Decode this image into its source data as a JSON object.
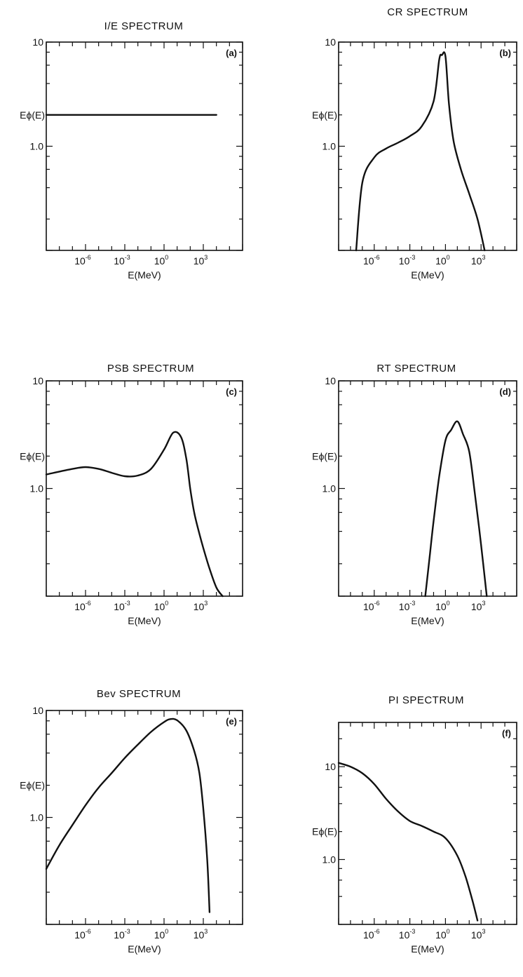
{
  "chart_data": [
    {
      "type": "line",
      "title": "I/E SPECTRUM",
      "panel_label": "(a)",
      "xlabel": "E(MeV)",
      "ylabel": "Eϕ(E)",
      "x_scale": "log",
      "y_scale": "log",
      "xlim": [
        1e-09,
        1000000.0
      ],
      "ylim": [
        0.1,
        10
      ],
      "x_ticks": [
        {
          "base": "10",
          "exp": "-6"
        },
        {
          "base": "10",
          "exp": "-3"
        },
        {
          "base": "10",
          "exp": "0"
        },
        {
          "base": "10",
          "exp": "3"
        }
      ],
      "x_tick_values": [
        1e-06,
        0.001,
        1,
        1000
      ],
      "y_ticks": [
        "1.0",
        "10"
      ],
      "y_tick_values": [
        1,
        10
      ],
      "series": [
        {
          "x": [
            1e-09,
            10000.0
          ],
          "y": [
            2.0,
            2.0
          ]
        }
      ]
    },
    {
      "type": "line",
      "title": "CR SPECTRUM",
      "panel_label": "(b)",
      "xlabel": "E(MeV)",
      "ylabel": "Eϕ(E)",
      "x_scale": "log",
      "y_scale": "log",
      "xlim": [
        1e-09,
        1000000.0
      ],
      "ylim": [
        0.1,
        10
      ],
      "x_ticks": [
        {
          "base": "10",
          "exp": "-6"
        },
        {
          "base": "10",
          "exp": "-3"
        },
        {
          "base": "10",
          "exp": "0"
        },
        {
          "base": "10",
          "exp": "3"
        }
      ],
      "x_tick_values": [
        1e-06,
        0.001,
        1,
        1000
      ],
      "y_ticks": [
        "1.0",
        "10"
      ],
      "y_tick_values": [
        1,
        10
      ],
      "series": [
        {
          "x": [
            3e-08,
            1e-07,
            1e-06,
            1e-05,
            0.0001,
            0.001,
            0.01,
            0.1,
            0.3,
            0.5,
            1.0,
            2,
            5,
            20,
            100,
            500,
            2000
          ],
          "y": [
            0.1,
            0.45,
            0.78,
            0.95,
            1.08,
            1.25,
            1.55,
            2.7,
            6.8,
            7.5,
            7.3,
            2.5,
            1.1,
            0.6,
            0.35,
            0.2,
            0.1
          ]
        }
      ]
    },
    {
      "type": "line",
      "title": "PSB SPECTRUM",
      "panel_label": "(c)",
      "xlabel": "E(MeV)",
      "ylabel": "Eϕ(E)",
      "x_scale": "log",
      "y_scale": "log",
      "xlim": [
        1e-09,
        1000000.0
      ],
      "ylim": [
        0.1,
        10
      ],
      "x_ticks": [
        {
          "base": "10",
          "exp": "-6"
        },
        {
          "base": "10",
          "exp": "-3"
        },
        {
          "base": "10",
          "exp": "0"
        },
        {
          "base": "10",
          "exp": "3"
        }
      ],
      "x_tick_values": [
        1e-06,
        0.001,
        1,
        1000
      ],
      "y_ticks": [
        "1.0",
        "10"
      ],
      "y_tick_values": [
        1,
        10
      ],
      "series": [
        {
          "x": [
            1e-09,
            1e-07,
            1e-06,
            1e-05,
            0.0001,
            0.001,
            0.01,
            0.1,
            1,
            5,
            20,
            50,
            100,
            200,
            500,
            1000,
            3000,
            10000.0,
            30000.0
          ],
          "y": [
            1.35,
            1.52,
            1.58,
            1.52,
            1.4,
            1.3,
            1.32,
            1.52,
            2.3,
            3.3,
            3.0,
            1.9,
            1.0,
            0.6,
            0.38,
            0.28,
            0.18,
            0.12,
            0.1
          ]
        }
      ]
    },
    {
      "type": "line",
      "title": "RT SPECTRUM",
      "panel_label": "(d)",
      "xlabel": "E(MeV)",
      "ylabel": "Eϕ(E)",
      "x_scale": "log",
      "y_scale": "log",
      "xlim": [
        1e-09,
        1000000.0
      ],
      "ylim": [
        0.1,
        10
      ],
      "x_ticks": [
        {
          "base": "10",
          "exp": "-6"
        },
        {
          "base": "10",
          "exp": "-3"
        },
        {
          "base": "10",
          "exp": "0"
        },
        {
          "base": "10",
          "exp": "3"
        }
      ],
      "x_tick_values": [
        1e-06,
        0.001,
        1,
        1000
      ],
      "y_ticks": [
        "1.0",
        "10"
      ],
      "y_tick_values": [
        1,
        10
      ],
      "series": [
        {
          "x": [
            0.02,
            0.05,
            0.1,
            0.3,
            1,
            3,
            10,
            30,
            100,
            300,
            1000,
            3000
          ],
          "y": [
            0.1,
            0.25,
            0.5,
            1.3,
            2.8,
            3.5,
            4.2,
            3.2,
            2.2,
            0.9,
            0.3,
            0.1
          ]
        }
      ]
    },
    {
      "type": "line",
      "title": "Bev SPECTRUM",
      "panel_label": "(e)",
      "xlabel": "E(MeV)",
      "ylabel": "Eϕ(E)",
      "x_scale": "log",
      "y_scale": "log",
      "xlim": [
        1e-09,
        1000000.0
      ],
      "ylim": [
        0.1,
        10
      ],
      "x_ticks": [
        {
          "base": "10",
          "exp": "-6"
        },
        {
          "base": "10",
          "exp": "-3"
        },
        {
          "base": "10",
          "exp": "0"
        },
        {
          "base": "10",
          "exp": "3"
        }
      ],
      "x_tick_values": [
        1e-06,
        0.001,
        1,
        1000
      ],
      "y_ticks": [
        "1.0",
        "10"
      ],
      "y_tick_values": [
        1,
        10
      ],
      "series": [
        {
          "x": [
            1e-09,
            1e-08,
            1e-07,
            1e-06,
            1e-05,
            0.0001,
            0.001,
            0.01,
            0.1,
            1,
            3,
            10,
            50,
            200,
            500,
            1000,
            2000,
            3000
          ],
          "y": [
            0.33,
            0.55,
            0.85,
            1.3,
            1.9,
            2.6,
            3.6,
            4.8,
            6.3,
            7.8,
            8.3,
            8.1,
            6.5,
            4.2,
            2.6,
            1.2,
            0.4,
            0.13
          ]
        }
      ]
    },
    {
      "type": "line",
      "title": "PI SPECTRUM",
      "panel_label": "(f)",
      "xlabel": "E(MeV)",
      "ylabel": "Eϕ(E)",
      "x_scale": "log",
      "y_scale": "log",
      "xlim": [
        1e-09,
        1000000.0
      ],
      "ylim": [
        0.2,
        30
      ],
      "x_ticks": [
        {
          "base": "10",
          "exp": "-6"
        },
        {
          "base": "10",
          "exp": "-3"
        },
        {
          "base": "10",
          "exp": "0"
        },
        {
          "base": "10",
          "exp": "3"
        }
      ],
      "x_tick_values": [
        1e-06,
        0.001,
        1,
        1000
      ],
      "y_ticks": [
        "1.0",
        "10"
      ],
      "y_tick_values": [
        1,
        10
      ],
      "series": [
        {
          "x": [
            1e-09,
            1e-08,
            1e-07,
            1e-06,
            1e-05,
            0.0001,
            0.001,
            0.01,
            0.1,
            1,
            10,
            50,
            200,
            500
          ],
          "y": [
            11,
            10,
            8.5,
            6.5,
            4.5,
            3.3,
            2.6,
            2.3,
            2.0,
            1.7,
            1.1,
            0.65,
            0.35,
            0.22
          ]
        }
      ]
    }
  ]
}
